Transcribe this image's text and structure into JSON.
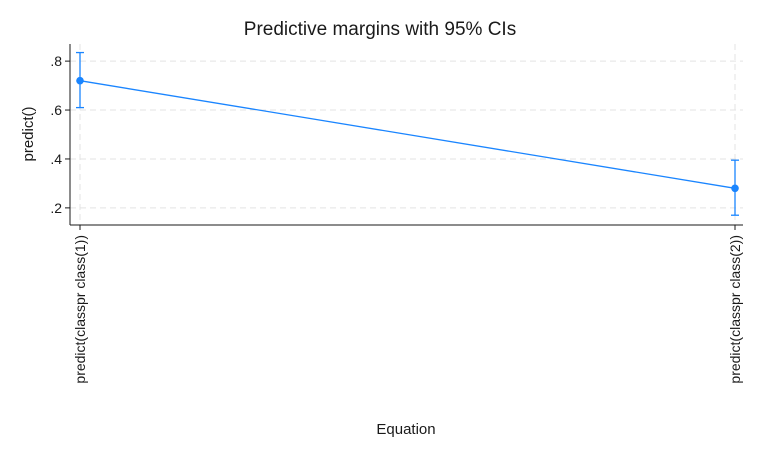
{
  "chart_data": {
    "type": "line",
    "title": "Predictive margins with 95% CIs",
    "xlabel": "Equation",
    "ylabel": "predict()",
    "categories": [
      "predict(classpr class(1))",
      "predict(classpr class(2))"
    ],
    "series": [
      {
        "values": [
          0.72,
          0.28
        ],
        "ci_lower": [
          0.61,
          0.17
        ],
        "ci_upper": [
          0.835,
          0.395
        ],
        "color": "#1a85ff"
      }
    ],
    "yticks": [
      0.2,
      0.4,
      0.6,
      0.8
    ],
    "ytick_labels": [
      ".2",
      ".4",
      ".6",
      ".8"
    ],
    "ylim": [
      0.13,
      0.87
    ],
    "grid": true
  }
}
